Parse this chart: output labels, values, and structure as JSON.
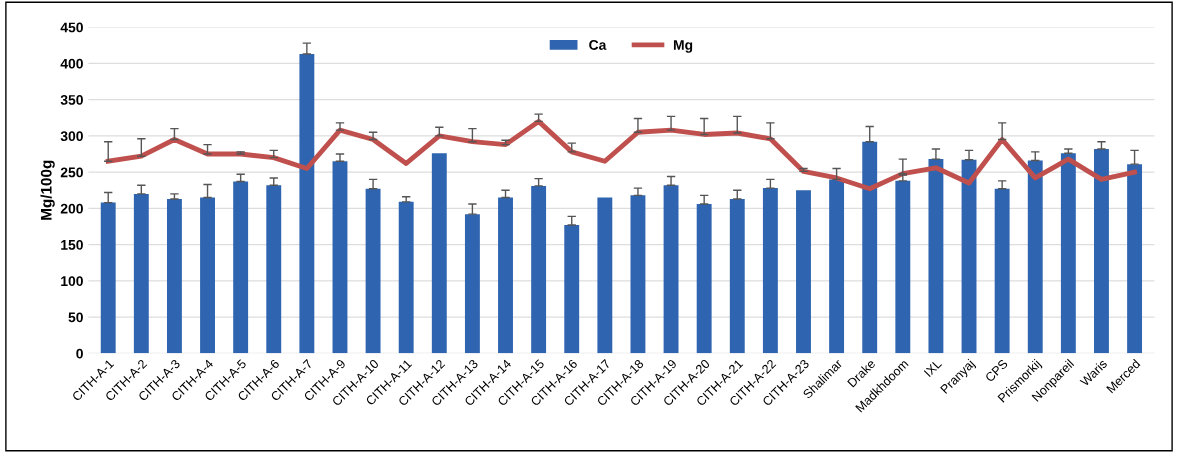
{
  "chart_data": {
    "type": "bar",
    "ylabel": "Mg/100g",
    "categories": [
      "CITH-A-1",
      "CITH-A-2",
      "CITH-A-3",
      "CITH-A-4",
      "CITH-A-5",
      "CITH-A-6",
      "CITH-A-7",
      "CITH-A-9",
      "CITH-A-10",
      "CITH-A-11",
      "CITH-A-12",
      "CITH-A-13",
      "CITH-A-14",
      "CITH-A-15",
      "CITH-A-16",
      "CITH-A-17",
      "CITH-A-18",
      "CITH-A-19",
      "CITH-A-20",
      "CITH-A-21",
      "CITH-A-22",
      "CITH-A-23",
      "Shalimar",
      "Drake",
      "Madkhdoom",
      "IXL",
      "Pranyaj",
      "CPS",
      "Prismorkij",
      "Nonpareil",
      "Waris",
      "Merced"
    ],
    "series": [
      {
        "name": "Ca",
        "color": "#2e64b0",
        "values": [
          208,
          220,
          213,
          215,
          237,
          232,
          413,
          265,
          227,
          209,
          276,
          192,
          215,
          231,
          177,
          215,
          218,
          232,
          206,
          213,
          228,
          225,
          240,
          292,
          238,
          268,
          267,
          227,
          266,
          276,
          282,
          261
        ],
        "errors": [
          [
            208,
            222
          ],
          [
            220,
            232
          ],
          [
            213,
            220
          ],
          [
            215,
            233
          ],
          [
            237,
            247
          ],
          [
            232,
            242
          ],
          [
            413,
            428
          ],
          [
            265,
            275
          ],
          [
            227,
            240
          ],
          [
            209,
            216
          ],
          null,
          [
            192,
            206
          ],
          [
            215,
            225
          ],
          [
            231,
            241
          ],
          [
            177,
            189
          ],
          null,
          [
            218,
            228
          ],
          [
            232,
            244
          ],
          [
            206,
            218
          ],
          [
            213,
            225
          ],
          [
            228,
            240
          ],
          null,
          [
            240,
            255
          ],
          [
            292,
            313
          ],
          [
            238,
            246
          ],
          [
            268,
            282
          ],
          [
            267,
            280
          ],
          [
            227,
            238
          ],
          [
            266,
            278
          ],
          [
            276,
            282
          ],
          [
            282,
            292
          ],
          [
            261,
            280
          ]
        ]
      },
      {
        "name": "Mg",
        "type": "line",
        "color": "#c0504d",
        "values": [
          265,
          272,
          295,
          275,
          275,
          270,
          255,
          308,
          295,
          262,
          300,
          292,
          288,
          320,
          278,
          265,
          305,
          308,
          302,
          304,
          296,
          251,
          242,
          227,
          248,
          256,
          235,
          295,
          242,
          268,
          240,
          250
        ],
        "errors": [
          [
            265,
            292
          ],
          [
            272,
            296
          ],
          [
            295,
            310
          ],
          [
            275,
            288
          ],
          [
            275,
            278
          ],
          [
            270,
            280
          ],
          null,
          [
            308,
            318
          ],
          [
            295,
            305
          ],
          null,
          [
            300,
            312
          ],
          [
            292,
            310
          ],
          [
            288,
            294
          ],
          [
            320,
            330
          ],
          [
            278,
            290
          ],
          null,
          [
            305,
            324
          ],
          [
            308,
            327
          ],
          [
            302,
            324
          ],
          [
            304,
            327
          ],
          [
            296,
            318
          ],
          [
            251,
            255
          ],
          null,
          null,
          [
            248,
            268
          ],
          null,
          null,
          [
            295,
            318
          ],
          null,
          null,
          null,
          null
        ]
      }
    ],
    "ylim": [
      0,
      450
    ],
    "yticks": [
      0,
      50,
      100,
      150,
      200,
      250,
      300,
      350,
      400,
      450
    ],
    "grid": "y",
    "legend": "top",
    "marker": "none",
    "line_style": "solid"
  }
}
